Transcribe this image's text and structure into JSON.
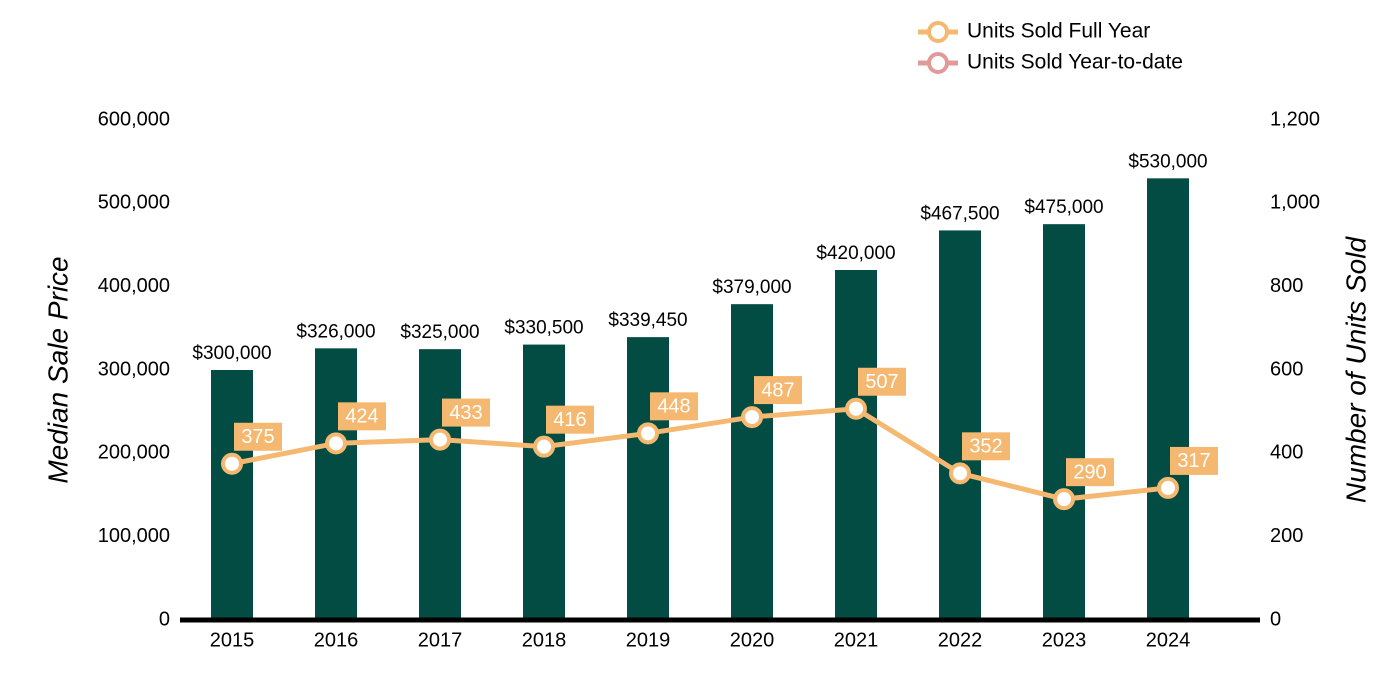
{
  "chart_data": {
    "type": "bar",
    "categories": [
      "2015",
      "2016",
      "2017",
      "2018",
      "2019",
      "2020",
      "2021",
      "2022",
      "2023",
      "2024"
    ],
    "series": [
      {
        "type": "bar",
        "color": "#024c43",
        "values": [
          300000,
          326000,
          325000,
          330500,
          339450,
          379000,
          420000,
          467500,
          475000,
          530000
        ],
        "value_labels": [
          "$300,000",
          "$326,000",
          "$325,000",
          "$330,500",
          "$339,450",
          "$379,000",
          "$420,000",
          "$467,500",
          "$475,000",
          "$530,000"
        ]
      },
      {
        "type": "line",
        "name": "Units Sold Full Year",
        "axis": "y2",
        "color": "#f4b870",
        "values": [
          375,
          424,
          433,
          416,
          448,
          487,
          507,
          352,
          290,
          317
        ]
      },
      {
        "type": "line",
        "name": "Units Sold Year-to-date",
        "axis": "y2",
        "color": "#e09a9a",
        "values": [
          null,
          null,
          null,
          null,
          null,
          null,
          null,
          null,
          null,
          null
        ]
      }
    ],
    "ylabel": "Median Sale Price",
    "y2label": "Number of Units Sold",
    "ylim": [
      0,
      600000
    ],
    "yticks": [
      0,
      {
        "value": 100000,
        "label": "100,000"
      },
      {
        "value": 200000,
        "label": "200,000"
      },
      {
        "value": 300000,
        "label": "300,000"
      },
      {
        "value": 400000,
        "label": "400,000"
      },
      {
        "value": 500000,
        "label": "500,000"
      },
      {
        "value": 600000,
        "label": "600,000"
      }
    ],
    "y2lim": [
      0,
      1200
    ],
    "y2ticks": [
      0,
      200,
      400,
      600,
      800,
      {
        "value": 1000,
        "label": "1,000"
      },
      {
        "value": 1200,
        "label": "1,200"
      }
    ],
    "legend": "top-right",
    "grid": false
  }
}
